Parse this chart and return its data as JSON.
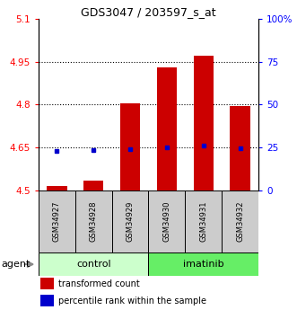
{
  "title": "GDS3047 / 203597_s_at",
  "samples": [
    "GSM34927",
    "GSM34928",
    "GSM34929",
    "GSM34930",
    "GSM34931",
    "GSM34932"
  ],
  "groups": [
    "control",
    "control",
    "control",
    "imatinib",
    "imatinib",
    "imatinib"
  ],
  "red_values": [
    4.515,
    4.535,
    4.805,
    4.93,
    4.97,
    4.795
  ],
  "blue_values": [
    4.638,
    4.642,
    4.645,
    4.652,
    4.656,
    4.649
  ],
  "ylim": [
    4.5,
    5.1
  ],
  "yticks": [
    4.5,
    4.65,
    4.8,
    4.95,
    5.1
  ],
  "ytick_labels": [
    "4.5",
    "4.65",
    "4.8",
    "4.95",
    "5.1"
  ],
  "right_yticks": [
    0,
    25,
    50,
    75,
    100
  ],
  "right_ytick_labels": [
    "0",
    "25",
    "50",
    "75",
    "100%"
  ],
  "right_ylim": [
    0,
    100
  ],
  "bar_width": 0.55,
  "group_colors": {
    "control": "#ccffcc",
    "imatinib": "#66ee66"
  },
  "sample_box_color": "#cccccc",
  "red_color": "#cc0000",
  "blue_color": "#0000cc",
  "bar_bottom": 4.5,
  "grid_lines": [
    4.65,
    4.8,
    4.95
  ],
  "legend_items": [
    {
      "color": "#cc0000",
      "label": "transformed count"
    },
    {
      "color": "#0000cc",
      "label": "percentile rank within the sample"
    }
  ]
}
